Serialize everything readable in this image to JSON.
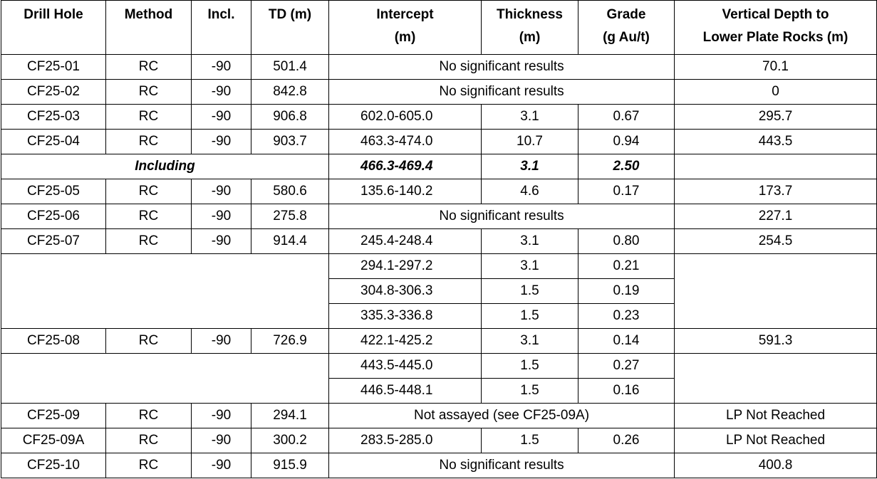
{
  "table": {
    "header": [
      "Drill Hole",
      "Method",
      "Incl.",
      "TD (m)",
      "Intercept\n(m)",
      "Thickness\n(m)",
      "Grade\n(g Au/t)",
      "Vertical Depth to\nLower Plate Rocks (m)"
    ],
    "rows": [
      [
        "CF25-01",
        "RC",
        "-90",
        "501.4",
        "No significant results",
        "70.1"
      ],
      [
        "CF25-02",
        "RC",
        "-90",
        "842.8",
        "No significant results",
        "0"
      ],
      [
        "CF25-03",
        "RC",
        "-90",
        "906.8",
        "602.0-605.0",
        "3.1",
        "0.67",
        "295.7"
      ],
      [
        "CF25-04",
        "RC",
        "-90",
        "903.7",
        "463.3-474.0",
        "10.7",
        "0.94",
        "443.5"
      ],
      [
        "Including",
        "466.3-469.4",
        "3.1",
        "2.50"
      ],
      [
        "CF25-05",
        "RC",
        "-90",
        "580.6",
        "135.6-140.2",
        "4.6",
        "0.17",
        "173.7"
      ],
      [
        "CF25-06",
        "RC",
        "-90",
        "275.8",
        "No significant results",
        "227.1"
      ],
      [
        "CF25-07",
        "RC",
        "-90",
        "914.4",
        "245.4-248.4",
        "3.1",
        "0.80",
        "254.5"
      ],
      [
        "294.1-297.2",
        "3.1",
        "0.21"
      ],
      [
        "304.8-306.3",
        "1.5",
        "0.19"
      ],
      [
        "335.3-336.8",
        "1.5",
        "0.23"
      ],
      [
        "CF25-08",
        "RC",
        "-90",
        "726.9",
        "422.1-425.2",
        "3.1",
        "0.14",
        "591.3"
      ],
      [
        "443.5-445.0",
        "1.5",
        "0.27"
      ],
      [
        "446.5-448.1",
        "1.5",
        "0.16"
      ],
      [
        "CF25-09",
        "RC",
        "-90",
        "294.1",
        "Not assayed (see CF25-09A)",
        "LP Not Reached"
      ],
      [
        "CF25-09A",
        "RC",
        "-90",
        "300.2",
        "283.5-285.0",
        "1.5",
        "0.26",
        "LP Not Reached"
      ],
      [
        "CF25-10",
        "RC",
        "-90",
        "915.9",
        "No significant results",
        "400.8"
      ]
    ]
  }
}
